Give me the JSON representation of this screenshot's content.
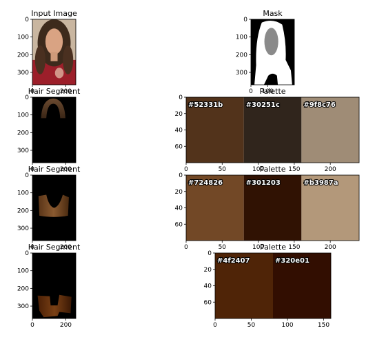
{
  "chart_data": [
    {
      "type": "image",
      "title": "Input Image",
      "xticks": [
        0,
        200
      ],
      "yticks": [
        0,
        100,
        200,
        300
      ],
      "xlim": [
        0,
        260
      ],
      "ylim": [
        0,
        370
      ]
    },
    {
      "type": "image",
      "title": "Mask",
      "xticks": [
        0,
        100
      ],
      "yticks": [
        0,
        100,
        200,
        300
      ],
      "xlim": [
        0,
        260
      ],
      "ylim": [
        0,
        370
      ]
    },
    {
      "type": "image",
      "title": "Hair Segment",
      "xticks": [
        0,
        200
      ],
      "yticks": [
        0,
        100,
        200,
        300
      ],
      "xlim": [
        0,
        260
      ],
      "ylim": [
        0,
        370
      ]
    },
    {
      "type": "palette",
      "title": "Palette",
      "colors": [
        "#52331b",
        "#30251c",
        "#9f8c76"
      ],
      "xticks": [
        0,
        50,
        100,
        150,
        200
      ],
      "yticks": [
        0,
        20,
        40,
        60
      ],
      "xlim": [
        0,
        240
      ],
      "ylim": [
        0,
        80
      ]
    },
    {
      "type": "image",
      "title": "Hair Segment",
      "xticks": [
        0,
        200
      ],
      "yticks": [
        0,
        100,
        200,
        300
      ],
      "xlim": [
        0,
        260
      ],
      "ylim": [
        0,
        370
      ]
    },
    {
      "type": "palette",
      "title": "Palette",
      "colors": [
        "#724826",
        "#301203",
        "#b3987a"
      ],
      "xticks": [
        0,
        50,
        100,
        150,
        200
      ],
      "yticks": [
        0,
        20,
        40,
        60
      ],
      "xlim": [
        0,
        240
      ],
      "ylim": [
        0,
        80
      ]
    },
    {
      "type": "image",
      "title": "Hair Segment",
      "xticks": [
        0,
        200
      ],
      "yticks": [
        0,
        100,
        200,
        300
      ],
      "xlim": [
        0,
        260
      ],
      "ylim": [
        0,
        370
      ]
    },
    {
      "type": "palette",
      "title": "Palette",
      "colors": [
        "#4f2407",
        "#320e01"
      ],
      "xticks": [
        0,
        50,
        100,
        150
      ],
      "yticks": [
        0,
        20,
        40,
        60
      ],
      "xlim": [
        0,
        160
      ],
      "ylim": [
        0,
        80
      ]
    }
  ]
}
